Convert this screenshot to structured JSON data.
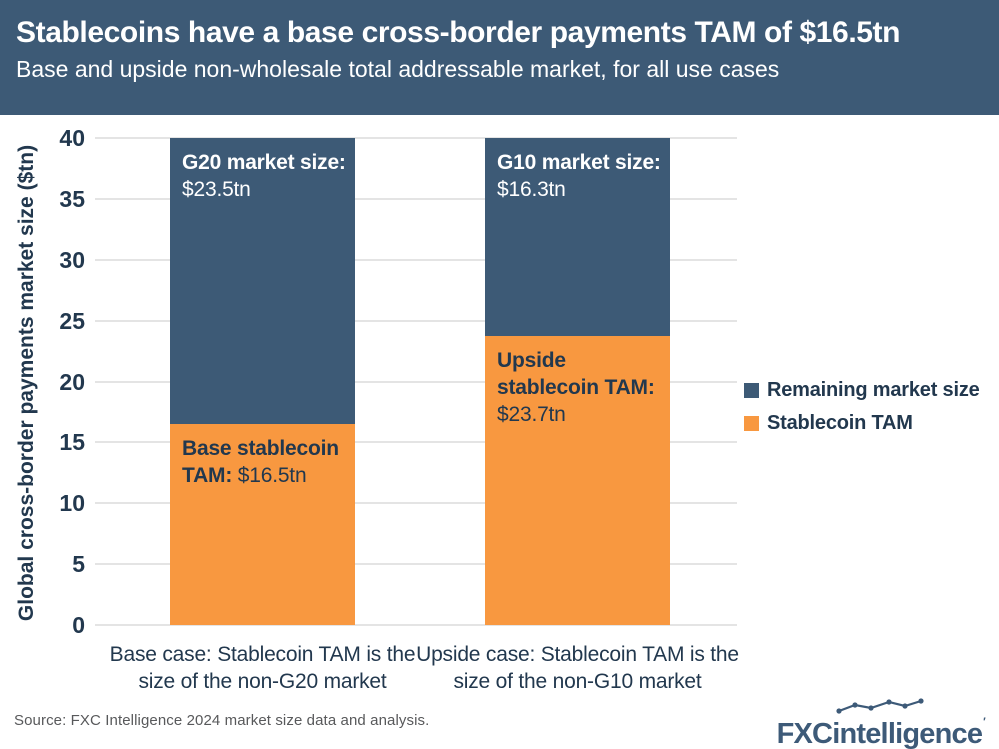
{
  "header": {
    "title": "Stablecoins have a base cross-border payments TAM of $16.5tn",
    "subtitle": "Base and upside non-wholesale total addressable market, for all use cases"
  },
  "colors": {
    "header_bg": "#3D5A76",
    "remaining_blue": "#3D5A76",
    "stablecoin_orange": "#F89840",
    "navy_text": "#22384E",
    "gridline": "#E4E4E4",
    "source_gray": "#58595B",
    "logo_blue": "#3D5A78",
    "white": "#FFFFFF"
  },
  "chart_data": {
    "type": "bar",
    "stacked": true,
    "title": "Stablecoins have a base cross-border payments TAM of $16.5tn",
    "subtitle": "Base and upside non-wholesale total addressable market, for all use cases",
    "ylabel": "Global cross-border payments market size ($tn)",
    "xlabel": "",
    "ylim": [
      0,
      40
    ],
    "y_ticks": [
      40,
      35,
      30,
      25,
      20,
      15,
      10,
      5,
      0
    ],
    "grid": true,
    "legend_position": "right",
    "categories": [
      "Base case: Stablecoin TAM is the size of the non-G20 market",
      "Upside case: Stablecoin TAM is the size of the non-G10 market"
    ],
    "series": [
      {
        "name": "Stablecoin TAM",
        "color": "#F89840",
        "values": [
          16.5,
          23.7
        ]
      },
      {
        "name": "Remaining market size",
        "color": "#3D5A76",
        "values": [
          23.5,
          16.3
        ]
      }
    ],
    "bar_labels": [
      {
        "category_index": 0,
        "series_index": 1,
        "bold": "G20 market size:",
        "value": "$23.5tn",
        "text_color": "#FFFFFF"
      },
      {
        "category_index": 0,
        "series_index": 0,
        "bold": "Base stablecoin TAM:",
        "value": "$16.5tn",
        "text_color": "#22384E"
      },
      {
        "category_index": 1,
        "series_index": 1,
        "bold": "G10 market size:",
        "value": "$16.3tn",
        "text_color": "#FFFFFF"
      },
      {
        "category_index": 1,
        "series_index": 0,
        "bold": "Upside stablecoin TAM:",
        "value": "$23.7tn",
        "text_color": "#22384E"
      }
    ],
    "legend": [
      {
        "label": "Remaining market size",
        "color": "#3D5A76"
      },
      {
        "label": "Stablecoin TAM",
        "color": "#F89840"
      }
    ]
  },
  "footer": {
    "source": "Source: FXC Intelligence 2024 market size data and analysis.",
    "logo_fxc": "FXC",
    "logo_rest": "intelligence"
  }
}
